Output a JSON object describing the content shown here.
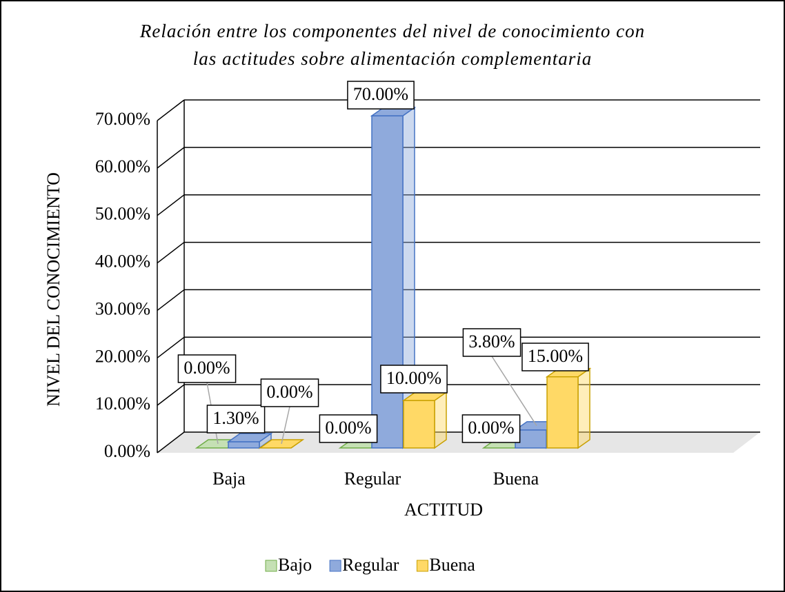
{
  "chart_data": {
    "type": "bar3d",
    "title": [
      "Relación entre los componentes del nivel de conocimiento con",
      "las actitudes sobre alimentación complementaria"
    ],
    "x_label": "ACTITUD",
    "y_label": "NIVEL DEL CONOCIMIENTO",
    "categories": [
      "Baja",
      "Regular",
      "Buena"
    ],
    "series": [
      {
        "name": "Bajo",
        "color": "#c5e0b4",
        "values": [
          0,
          0,
          0
        ],
        "value_labels": [
          "0.00%",
          "0.00%",
          "0.00%"
        ]
      },
      {
        "name": "Regular",
        "color": "#8faadc",
        "values": [
          1.3,
          70,
          3.8
        ],
        "value_labels": [
          "1.30%",
          "70.00%",
          "3.80%"
        ]
      },
      {
        "name": "Buena",
        "color": "#ffd966",
        "values": [
          0,
          10,
          15
        ],
        "value_labels": [
          "0.00%",
          "10.00%",
          "15.00%"
        ]
      }
    ],
    "ylim": [
      0,
      70
    ],
    "yticks": [
      {
        "value": 0,
        "label": "0.00%"
      },
      {
        "value": 10,
        "label": "10.00%"
      },
      {
        "value": 20,
        "label": "20.00%"
      },
      {
        "value": 30,
        "label": "30.00%"
      },
      {
        "value": 40,
        "label": "40.00%"
      },
      {
        "value": 50,
        "label": "50.00%"
      },
      {
        "value": 60,
        "label": "60.00%"
      },
      {
        "value": 70,
        "label": "70.00%"
      }
    ],
    "grid": true,
    "legend": "bottom"
  }
}
